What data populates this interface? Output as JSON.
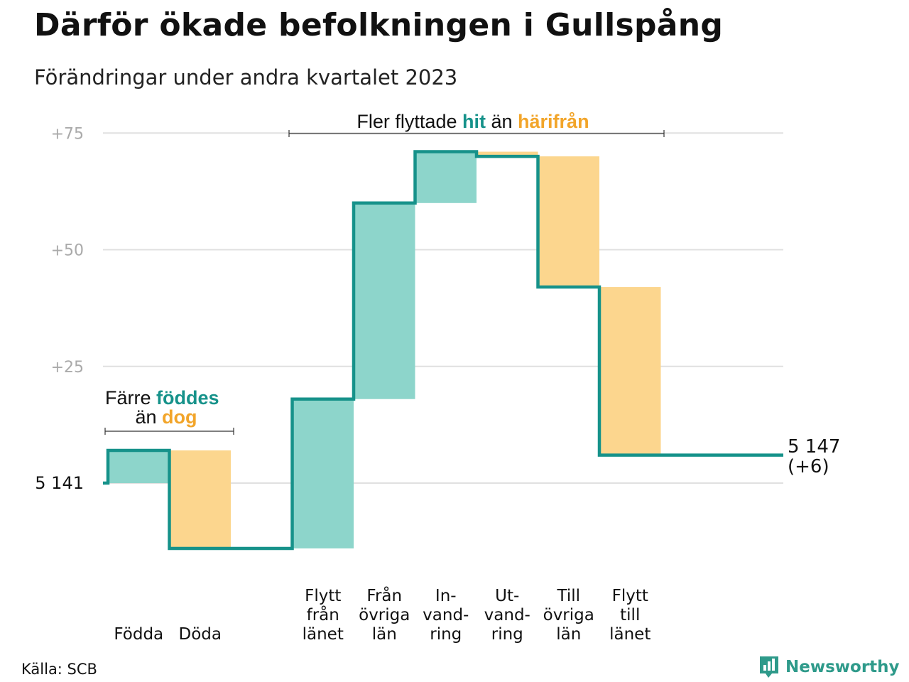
{
  "header": {
    "title": "Därför ökade befolkningen i Gullspång",
    "subtitle": "Förändringar under andra kvartalet 2023"
  },
  "footer": {
    "source": "Källa: SCB",
    "brand": "Newsworthy"
  },
  "colors": {
    "increase": "#8dd5cb",
    "decrease": "#fcd68e",
    "line": "#16928a",
    "accent_teal": "#16928a",
    "accent_orange": "#f2a52a",
    "grid": "#e0e0e0",
    "tick": "#aaaaaa"
  },
  "annotations": {
    "birth_death": {
      "line1_prefix": "Färre ",
      "line1_highlight": "föddes",
      "line2_prefix": "än ",
      "line2_highlight": "dog"
    },
    "migration": {
      "prefix": "Fler flyttade ",
      "highlight1": "hit",
      "middle": " än ",
      "highlight2": "härifrån"
    }
  },
  "chart_data": {
    "type": "waterfall",
    "start_label": "5  141",
    "end_label_line1": "5 147",
    "end_label_line2": "(+6)",
    "start_value": 5141,
    "end_value": 5147,
    "ylim": [
      -14,
      76
    ],
    "yticks": [
      {
        "value": 25,
        "label": "+25"
      },
      {
        "value": 50,
        "label": "+50"
      },
      {
        "value": 75,
        "label": "+75"
      }
    ],
    "steps": [
      {
        "label_lines": [
          "Födda"
        ],
        "change": 7,
        "kind": "increase"
      },
      {
        "label_lines": [
          "Döda"
        ],
        "change": -21,
        "kind": "decrease"
      },
      {
        "label_lines": [],
        "change": 0,
        "kind": "gap"
      },
      {
        "label_lines": [
          "Flytt",
          "från",
          "länet"
        ],
        "change": 32,
        "kind": "increase"
      },
      {
        "label_lines": [
          "Från",
          "övriga",
          "län"
        ],
        "change": 42,
        "kind": "increase"
      },
      {
        "label_lines": [
          "In-",
          "vand-",
          "ring"
        ],
        "change": 11,
        "kind": "increase"
      },
      {
        "label_lines": [
          "Ut-",
          "vand-",
          "ring"
        ],
        "change": -1,
        "kind": "decrease"
      },
      {
        "label_lines": [
          "Till",
          "övriga",
          "län"
        ],
        "change": -28,
        "kind": "decrease"
      },
      {
        "label_lines": [
          "Flytt",
          "till",
          "länet"
        ],
        "change": -36,
        "kind": "decrease"
      }
    ]
  }
}
